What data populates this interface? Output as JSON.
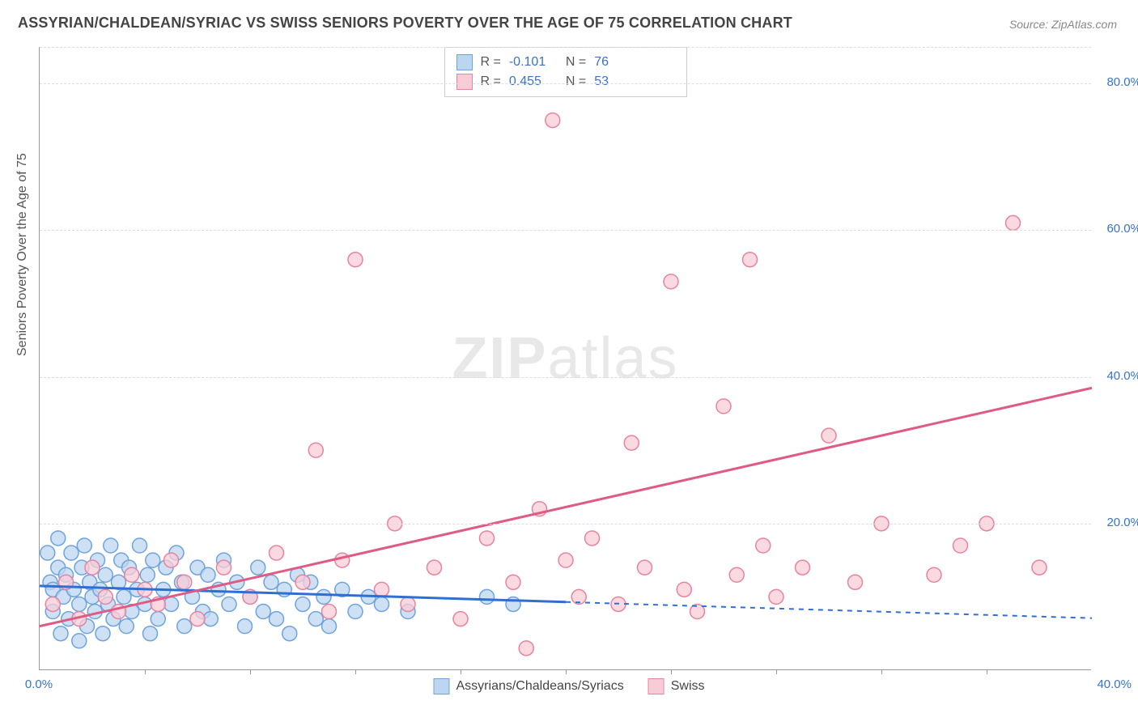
{
  "title": "ASSYRIAN/CHALDEAN/SYRIAC VS SWISS SENIORS POVERTY OVER THE AGE OF 75 CORRELATION CHART",
  "source": "Source: ZipAtlas.com",
  "ylabel": "Seniors Poverty Over the Age of 75",
  "watermark_bold": "ZIP",
  "watermark_light": "atlas",
  "chart": {
    "type": "scatter",
    "xlim": [
      0,
      40
    ],
    "ylim": [
      0,
      85
    ],
    "xtick_origin": "0.0%",
    "xtick_max": "40.0%",
    "yticks": [
      {
        "v": 20,
        "label": "20.0%"
      },
      {
        "v": 40,
        "label": "40.0%"
      },
      {
        "v": 60,
        "label": "60.0%"
      },
      {
        "v": 80,
        "label": "80.0%"
      }
    ],
    "xtick_minor_step": 4,
    "grid_color": "#dddddd",
    "axis_color": "#999999",
    "marker_radius": 9,
    "marker_stroke_width": 1.5,
    "trend_line_width": 3,
    "trend_dash_width": 2,
    "legend": {
      "series_a_label": "Assyrians/Chaldeans/Syriacs",
      "series_b_label": "Swiss"
    },
    "stats": {
      "a": {
        "r_label": "R =",
        "r": "-0.101",
        "n_label": "N =",
        "n": "76"
      },
      "b": {
        "r_label": "R =",
        "r": "0.455",
        "n_label": "N =",
        "n": "53"
      }
    },
    "series_a": {
      "name": "Assyrians/Chaldeans/Syriacs",
      "fill": "#bcd5f0",
      "stroke": "#6fa3dd",
      "trend_color": "#2f6fd4",
      "trend_solid": {
        "x1": 0,
        "y1": 11.5,
        "x2": 20,
        "y2": 9.3
      },
      "trend_dash": {
        "x1": 20,
        "y1": 9.3,
        "x2": 40,
        "y2": 7.1
      },
      "points": [
        [
          0.3,
          16
        ],
        [
          0.4,
          12
        ],
        [
          0.5,
          8
        ],
        [
          0.5,
          11
        ],
        [
          0.7,
          14
        ],
        [
          0.7,
          18
        ],
        [
          0.8,
          5
        ],
        [
          0.9,
          10
        ],
        [
          1.0,
          13
        ],
        [
          1.1,
          7
        ],
        [
          1.2,
          16
        ],
        [
          1.3,
          11
        ],
        [
          1.5,
          4
        ],
        [
          1.5,
          9
        ],
        [
          1.6,
          14
        ],
        [
          1.7,
          17
        ],
        [
          1.8,
          6
        ],
        [
          1.9,
          12
        ],
        [
          2.0,
          10
        ],
        [
          2.1,
          8
        ],
        [
          2.2,
          15
        ],
        [
          2.3,
          11
        ],
        [
          2.4,
          5
        ],
        [
          2.5,
          13
        ],
        [
          2.6,
          9
        ],
        [
          2.7,
          17
        ],
        [
          2.8,
          7
        ],
        [
          3.0,
          12
        ],
        [
          3.1,
          15
        ],
        [
          3.2,
          10
        ],
        [
          3.3,
          6
        ],
        [
          3.4,
          14
        ],
        [
          3.5,
          8
        ],
        [
          3.7,
          11
        ],
        [
          3.8,
          17
        ],
        [
          4.0,
          9
        ],
        [
          4.1,
          13
        ],
        [
          4.2,
          5
        ],
        [
          4.3,
          15
        ],
        [
          4.5,
          7
        ],
        [
          4.7,
          11
        ],
        [
          4.8,
          14
        ],
        [
          5.0,
          9
        ],
        [
          5.2,
          16
        ],
        [
          5.4,
          12
        ],
        [
          5.5,
          6
        ],
        [
          5.8,
          10
        ],
        [
          6.0,
          14
        ],
        [
          6.2,
          8
        ],
        [
          6.4,
          13
        ],
        [
          6.5,
          7
        ],
        [
          6.8,
          11
        ],
        [
          7.0,
          15
        ],
        [
          7.2,
          9
        ],
        [
          7.5,
          12
        ],
        [
          7.8,
          6
        ],
        [
          8.0,
          10
        ],
        [
          8.3,
          14
        ],
        [
          8.5,
          8
        ],
        [
          8.8,
          12
        ],
        [
          9.0,
          7
        ],
        [
          9.3,
          11
        ],
        [
          9.5,
          5
        ],
        [
          9.8,
          13
        ],
        [
          10.0,
          9
        ],
        [
          10.3,
          12
        ],
        [
          10.5,
          7
        ],
        [
          10.8,
          10
        ],
        [
          11.0,
          6
        ],
        [
          11.5,
          11
        ],
        [
          12.0,
          8
        ],
        [
          12.5,
          10
        ],
        [
          13.0,
          9
        ],
        [
          14.0,
          8
        ],
        [
          17.0,
          10
        ],
        [
          18.0,
          9
        ]
      ]
    },
    "series_b": {
      "name": "Swiss",
      "fill": "#f8ccd7",
      "stroke": "#e684a0",
      "trend_color": "#e05b84",
      "trend_solid": {
        "x1": 0,
        "y1": 6,
        "x2": 40,
        "y2": 38.5
      },
      "points": [
        [
          0.5,
          9
        ],
        [
          1.0,
          12
        ],
        [
          1.5,
          7
        ],
        [
          2.0,
          14
        ],
        [
          2.5,
          10
        ],
        [
          3.0,
          8
        ],
        [
          3.5,
          13
        ],
        [
          4.0,
          11
        ],
        [
          4.5,
          9
        ],
        [
          5.0,
          15
        ],
        [
          5.5,
          12
        ],
        [
          6.0,
          7
        ],
        [
          7.0,
          14
        ],
        [
          8.0,
          10
        ],
        [
          9.0,
          16
        ],
        [
          10.0,
          12
        ],
        [
          10.5,
          30
        ],
        [
          11.0,
          8
        ],
        [
          11.5,
          15
        ],
        [
          12.0,
          56
        ],
        [
          13.0,
          11
        ],
        [
          13.5,
          20
        ],
        [
          14.0,
          9
        ],
        [
          15.0,
          14
        ],
        [
          16.0,
          7
        ],
        [
          17.0,
          18
        ],
        [
          18.0,
          12
        ],
        [
          18.5,
          3
        ],
        [
          19.0,
          22
        ],
        [
          19.5,
          75
        ],
        [
          20.0,
          15
        ],
        [
          20.5,
          10
        ],
        [
          21.0,
          18
        ],
        [
          22.0,
          9
        ],
        [
          22.5,
          31
        ],
        [
          23.0,
          14
        ],
        [
          24.0,
          53
        ],
        [
          24.5,
          11
        ],
        [
          25.0,
          8
        ],
        [
          26.0,
          36
        ],
        [
          26.5,
          13
        ],
        [
          27.0,
          56
        ],
        [
          27.5,
          17
        ],
        [
          28.0,
          10
        ],
        [
          29.0,
          14
        ],
        [
          30.0,
          32
        ],
        [
          31.0,
          12
        ],
        [
          32.0,
          20
        ],
        [
          34.0,
          13
        ],
        [
          35.0,
          17
        ],
        [
          36.0,
          20
        ],
        [
          37.0,
          61
        ],
        [
          38.0,
          14
        ]
      ]
    }
  }
}
